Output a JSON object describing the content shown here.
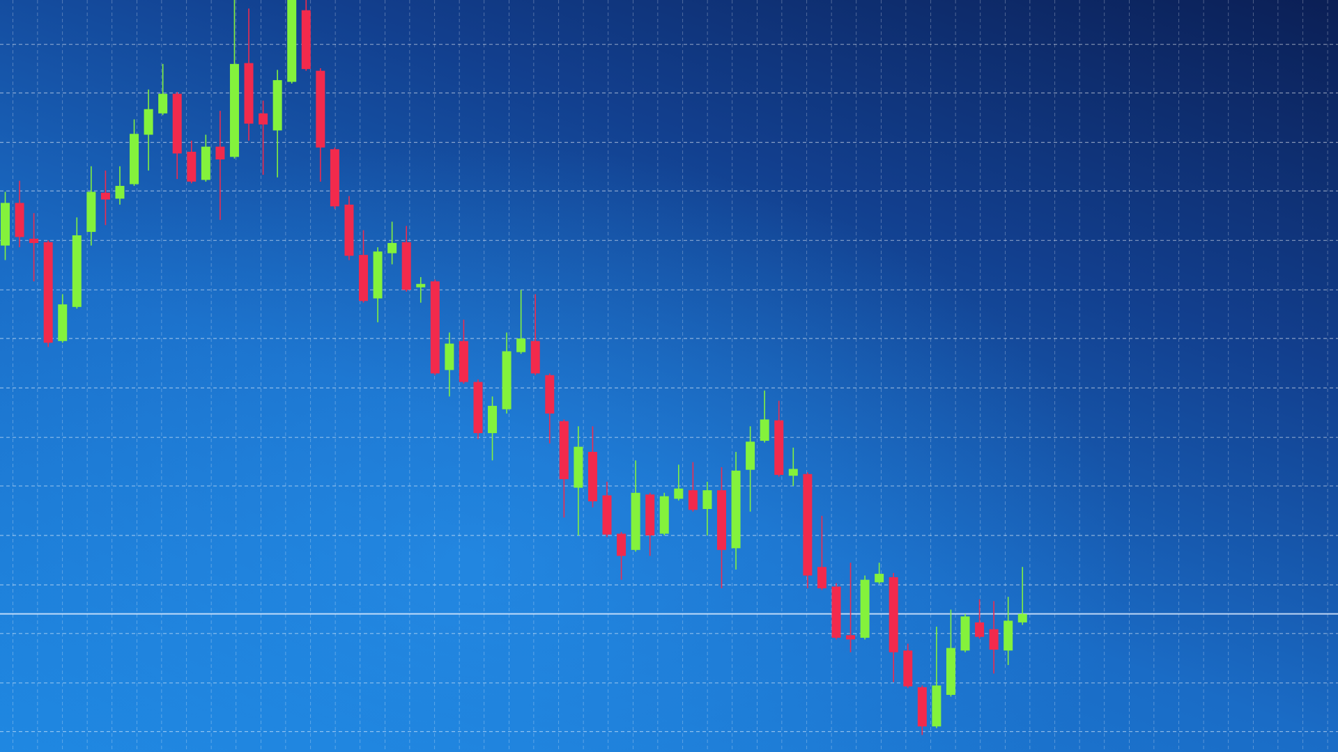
{
  "chart_data": {
    "type": "candlestick",
    "categories": [
      null,
      null,
      null,
      null,
      null,
      null,
      null,
      null,
      null,
      null,
      null,
      null,
      null,
      null,
      null,
      null,
      null,
      null,
      null,
      null,
      null,
      null,
      null,
      null,
      null,
      null,
      null,
      null,
      null,
      null,
      null,
      null,
      null,
      null,
      null,
      null,
      null,
      null,
      null,
      null,
      null,
      null,
      null,
      null,
      null,
      null,
      null,
      null,
      null,
      null,
      null,
      null,
      null,
      null,
      null,
      null,
      null,
      null,
      null,
      null,
      null,
      null,
      null,
      null,
      null,
      null,
      null,
      null,
      null,
      null,
      null,
      null
    ],
    "open": [
      594,
      644,
      602,
      598,
      482,
      522,
      610,
      656,
      649,
      666,
      724,
      749,
      772,
      704,
      671,
      710,
      698,
      808,
      749,
      729,
      786,
      870,
      799,
      707,
      642,
      583,
      532,
      585,
      598,
      545,
      552,
      448,
      482,
      434,
      374,
      402,
      469,
      482,
      442,
      388,
      310,
      352,
      301,
      256,
      237,
      302,
      256,
      297,
      307,
      285,
      307,
      239,
      331,
      365,
      389,
      324,
      326,
      217,
      194,
      137,
      134,
      199,
      205,
      119,
      76,
      30,
      67,
      119,
      152,
      144,
      119,
      152
    ],
    "high": [
      657,
      670,
      632,
      600,
      537,
      627,
      687,
      682,
      687,
      742,
      777,
      807,
      774,
      717,
      724,
      752,
      882,
      872,
      764,
      800,
      882,
      882,
      802,
      709,
      652,
      612,
      592,
      622,
      617,
      557,
      554,
      492,
      507,
      437,
      417,
      492,
      542,
      537,
      444,
      390,
      382,
      382,
      317,
      258,
      342,
      304,
      304,
      337,
      340,
      317,
      334,
      352,
      382,
      424,
      412,
      357,
      328,
      277,
      198,
      222,
      207,
      222,
      210,
      127,
      78,
      147,
      167,
      162,
      179,
      177,
      182,
      217
    ],
    "low": [
      577,
      592,
      552,
      475,
      480,
      520,
      594,
      618,
      642,
      664,
      682,
      747,
      672,
      667,
      669,
      624,
      696,
      717,
      677,
      674,
      784,
      799,
      669,
      637,
      577,
      527,
      504,
      572,
      540,
      527,
      442,
      417,
      432,
      367,
      342,
      397,
      467,
      442,
      362,
      275,
      254,
      287,
      252,
      202,
      235,
      230,
      254,
      295,
      282,
      254,
      192,
      214,
      282,
      363,
      323,
      312,
      192,
      190,
      132,
      117,
      132,
      197,
      82,
      75,
      20,
      28,
      65,
      117,
      133,
      92,
      102,
      149
    ],
    "close": [
      644,
      604,
      597,
      480,
      525,
      606,
      657,
      648,
      664,
      725,
      754,
      772,
      702,
      669,
      710,
      695,
      807,
      737,
      736,
      788,
      882,
      801,
      709,
      640,
      582,
      529,
      587,
      597,
      542,
      549,
      444,
      479,
      434,
      374,
      406,
      470,
      485,
      444,
      397,
      320,
      358,
      294,
      255,
      230,
      304,
      254,
      300,
      309,
      284,
      307,
      237,
      330,
      364,
      390,
      325,
      332,
      207,
      192,
      134,
      132,
      202,
      209,
      117,
      77,
      30,
      78,
      122,
      159,
      135,
      120,
      154,
      162
    ],
    "up_color": "#84f23c",
    "down_color": "#f22a4c",
    "ylim": [
      0,
      882
    ],
    "yticks": [
      24,
      81,
      139,
      196,
      254,
      312,
      369,
      427,
      485,
      542,
      600,
      658,
      715,
      773,
      830
    ],
    "grid": true,
    "reference_line": 162
  }
}
